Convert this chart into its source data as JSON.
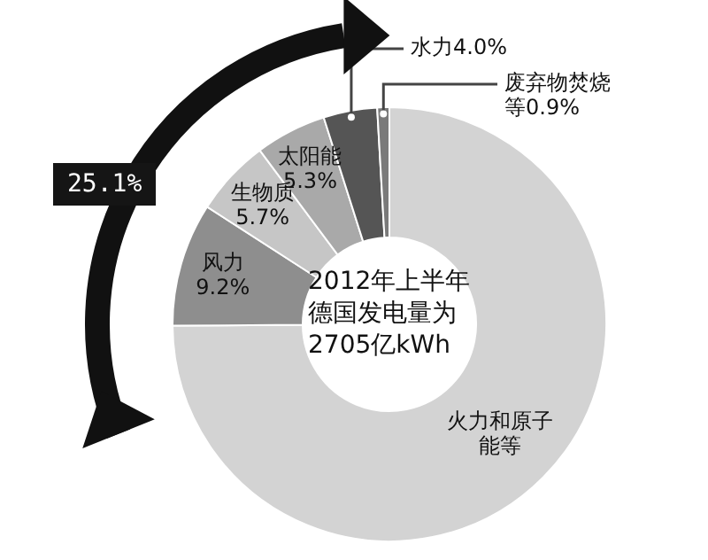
{
  "chart_data": {
    "type": "donut",
    "title": "2012年上半年德国发电量为2705亿kWh",
    "categories": [
      "火力和原子能等",
      "风力",
      "生物质",
      "太阳能",
      "水力",
      "废弃物焚烧等"
    ],
    "values": [
      74.9,
      9.2,
      5.7,
      5.3,
      4.0,
      0.9
    ],
    "value_labels": [
      null,
      "9.2%",
      "5.7%",
      "5.3%",
      "4.0%",
      "0.9%"
    ],
    "colors": [
      "#d3d3d3",
      "#8e8e8e",
      "#c6c6c6",
      "#a9a9a9",
      "#555555",
      "#7a7a7a"
    ],
    "annotations": [
      "25.1%"
    ],
    "legend": false
  }
}
